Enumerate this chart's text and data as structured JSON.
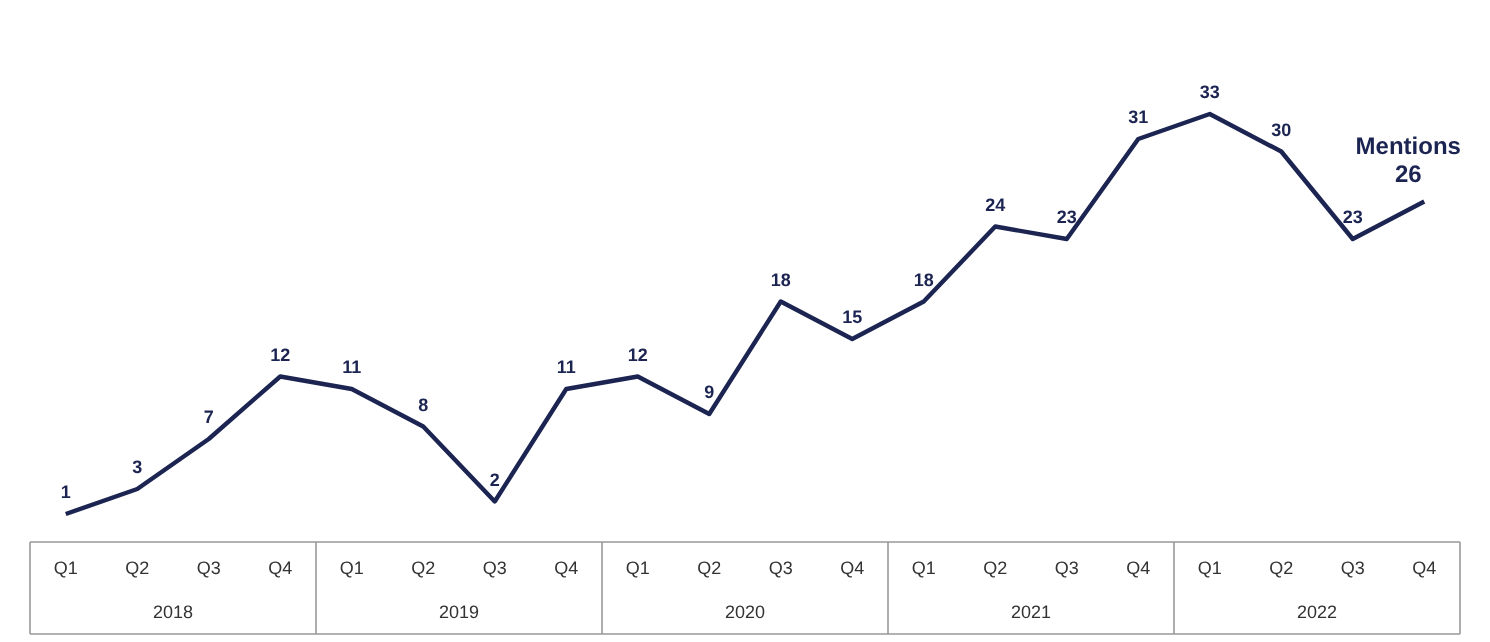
{
  "chart_data": {
    "type": "line",
    "categories": [
      "Q1",
      "Q2",
      "Q3",
      "Q4",
      "Q1",
      "Q2",
      "Q3",
      "Q4",
      "Q1",
      "Q2",
      "Q3",
      "Q4",
      "Q1",
      "Q2",
      "Q3",
      "Q4",
      "Q1",
      "Q2",
      "Q3",
      "Q4"
    ],
    "series": [
      {
        "name": "Mentions",
        "color": "#1c2452",
        "values": [
          1,
          3,
          7,
          12,
          11,
          8,
          2,
          11,
          12,
          9,
          18,
          15,
          18,
          24,
          23,
          31,
          33,
          30,
          23,
          26
        ]
      }
    ],
    "data_labels": true,
    "annotations": [
      "2018",
      "2019",
      "2020",
      "2021",
      "2022"
    ]
  }
}
